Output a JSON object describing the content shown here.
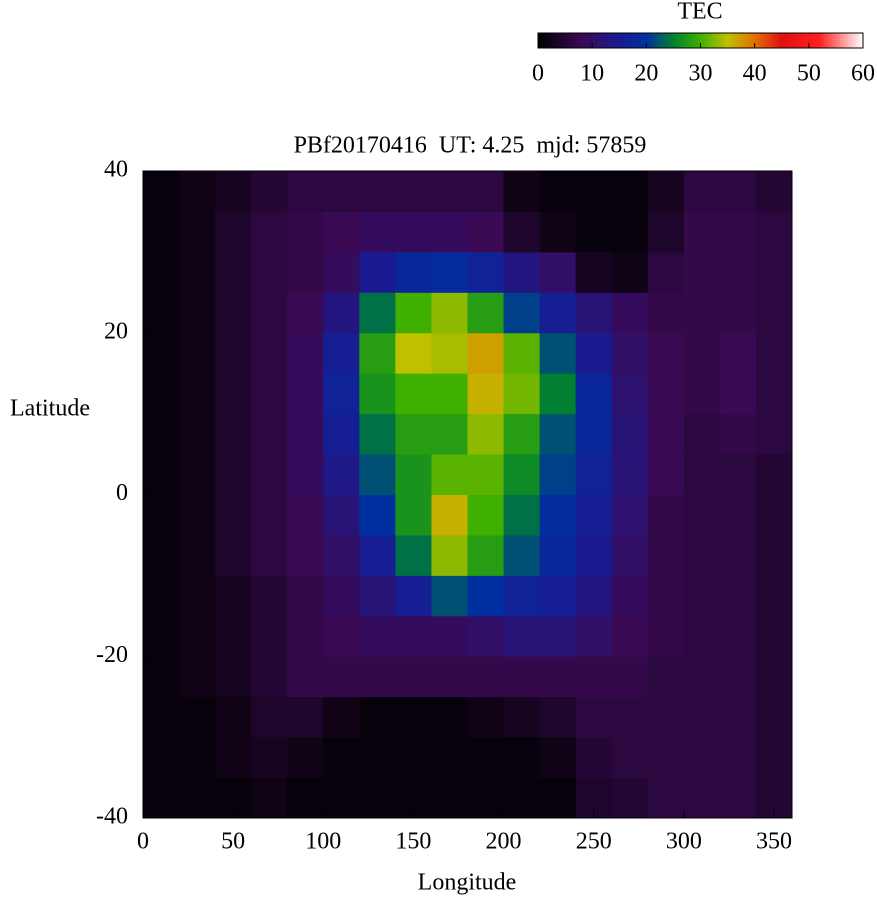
{
  "chart_data": {
    "type": "heatmap",
    "title": "PBf20170416  UT: 4.25  mjd: 57859",
    "x_label": "Longitude",
    "y_label": "Latitude",
    "colorbar_label": "TEC",
    "x": [
      10,
      30,
      50,
      70,
      90,
      110,
      130,
      150,
      170,
      190,
      210,
      230,
      250,
      270,
      290,
      310,
      330,
      350
    ],
    "y": [
      -37.5,
      -32.5,
      -27.5,
      -22.5,
      -17.5,
      -12.5,
      -7.5,
      -2.5,
      2.5,
      7.5,
      12.5,
      17.5,
      22.5,
      27.5,
      32.5,
      37.5
    ],
    "x_step": 20,
    "y_step": 5,
    "z": [
      [
        1,
        1,
        1,
        2,
        1,
        1,
        1,
        1,
        1,
        1,
        1,
        1,
        4,
        5,
        6,
        6,
        6,
        5
      ],
      [
        1,
        1,
        2,
        3,
        2,
        1,
        1,
        1,
        1,
        1,
        1,
        2,
        5,
        6,
        6,
        6,
        6,
        5
      ],
      [
        1,
        1,
        2,
        4,
        4,
        2,
        1,
        1,
        1,
        2,
        3,
        4,
        6,
        6,
        6,
        6,
        6,
        5
      ],
      [
        1,
        2,
        3,
        5,
        7,
        7,
        7,
        7,
        7,
        7,
        7,
        7,
        7,
        7,
        6,
        6,
        6,
        5
      ],
      [
        1,
        2,
        3,
        5,
        7,
        8,
        9,
        9,
        9,
        10,
        12,
        12,
        10,
        8,
        7,
        6,
        6,
        5
      ],
      [
        1,
        2,
        3,
        5,
        7,
        9,
        12,
        16,
        22,
        20,
        17,
        16,
        13,
        9,
        7,
        6,
        6,
        5
      ],
      [
        1,
        2,
        4,
        6,
        8,
        10,
        16,
        24,
        33,
        28,
        22,
        18,
        15,
        10,
        7,
        6,
        6,
        5
      ],
      [
        1,
        2,
        4,
        6,
        8,
        12,
        20,
        27,
        36,
        30,
        24,
        19,
        16,
        11,
        7,
        6,
        6,
        5
      ],
      [
        1,
        2,
        4,
        6,
        9,
        14,
        22,
        27,
        31,
        31,
        26,
        21,
        17,
        12,
        8,
        6,
        6,
        5
      ],
      [
        1,
        2,
        4,
        6,
        9,
        16,
        24,
        28,
        28,
        33,
        28,
        22,
        18,
        12,
        8,
        6,
        7,
        6
      ],
      [
        1,
        2,
        4,
        6,
        9,
        17,
        27,
        30,
        30,
        36,
        32,
        25,
        18,
        11,
        8,
        7,
        8,
        6
      ],
      [
        1,
        2,
        4,
        6,
        9,
        16,
        28,
        35,
        34,
        37,
        31,
        22,
        15,
        10,
        8,
        7,
        8,
        6
      ],
      [
        1,
        2,
        4,
        6,
        8,
        13,
        24,
        30,
        33,
        28,
        21,
        16,
        12,
        9,
        7,
        7,
        7,
        6
      ],
      [
        1,
        2,
        4,
        6,
        7,
        9,
        15,
        18,
        19,
        17,
        13,
        10,
        3,
        2,
        6,
        7,
        7,
        6
      ],
      [
        1,
        2,
        4,
        6,
        7,
        8,
        9,
        9,
        9,
        8,
        4,
        2,
        1,
        1,
        4,
        7,
        7,
        6
      ],
      [
        1,
        2,
        3,
        5,
        6,
        6,
        6,
        6,
        6,
        6,
        2,
        1,
        1,
        1,
        3,
        6,
        6,
        5
      ]
    ],
    "xlim": [
      0,
      360
    ],
    "ylim": [
      -40,
      40
    ],
    "xticks": [
      0,
      50,
      100,
      150,
      200,
      250,
      300,
      350
    ],
    "yticks": [
      -40,
      -20,
      0,
      20,
      40
    ],
    "clim": [
      0,
      60
    ],
    "cticks": [
      0,
      10,
      20,
      30,
      40,
      50,
      60
    ],
    "colormap": [
      [
        0,
        "#000000"
      ],
      [
        8,
        "#3a0a55"
      ],
      [
        15,
        "#1a1a90"
      ],
      [
        20,
        "#0030a0"
      ],
      [
        25,
        "#008030"
      ],
      [
        30,
        "#40b000"
      ],
      [
        35,
        "#c0c000"
      ],
      [
        40,
        "#e07000"
      ],
      [
        45,
        "#e01010"
      ],
      [
        52,
        "#ff2020"
      ],
      [
        60,
        "#ffffff"
      ]
    ]
  }
}
